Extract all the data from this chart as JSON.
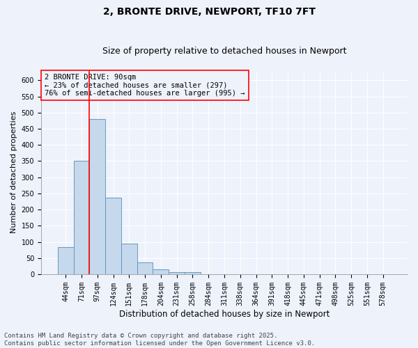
{
  "title": "2, BRONTE DRIVE, NEWPORT, TF10 7FT",
  "subtitle": "Size of property relative to detached houses in Newport",
  "xlabel": "Distribution of detached houses by size in Newport",
  "ylabel": "Number of detached properties",
  "bar_color": "#c5d8ec",
  "bar_edge_color": "#6699bb",
  "background_color": "#eef2fb",
  "grid_color": "#ffffff",
  "categories": [
    "44sqm",
    "71sqm",
    "97sqm",
    "124sqm",
    "151sqm",
    "178sqm",
    "204sqm",
    "231sqm",
    "258sqm",
    "284sqm",
    "311sqm",
    "338sqm",
    "364sqm",
    "391sqm",
    "418sqm",
    "445sqm",
    "471sqm",
    "498sqm",
    "525sqm",
    "551sqm",
    "578sqm"
  ],
  "values": [
    85,
    352,
    480,
    236,
    95,
    37,
    15,
    6,
    6,
    0,
    0,
    0,
    0,
    0,
    0,
    0,
    0,
    0,
    0,
    0,
    0
  ],
  "ylim": [
    0,
    630
  ],
  "yticks": [
    0,
    50,
    100,
    150,
    200,
    250,
    300,
    350,
    400,
    450,
    500,
    550,
    600
  ],
  "red_line_index": 2,
  "annotation_text": "2 BRONTE DRIVE: 90sqm\n← 23% of detached houses are smaller (297)\n76% of semi-detached houses are larger (995) →",
  "footer_line1": "Contains HM Land Registry data © Crown copyright and database right 2025.",
  "footer_line2": "Contains public sector information licensed under the Open Government Licence v3.0.",
  "title_fontsize": 10,
  "subtitle_fontsize": 9,
  "xlabel_fontsize": 8.5,
  "ylabel_fontsize": 8,
  "tick_fontsize": 7,
  "annotation_fontsize": 7.5,
  "footer_fontsize": 6.5
}
